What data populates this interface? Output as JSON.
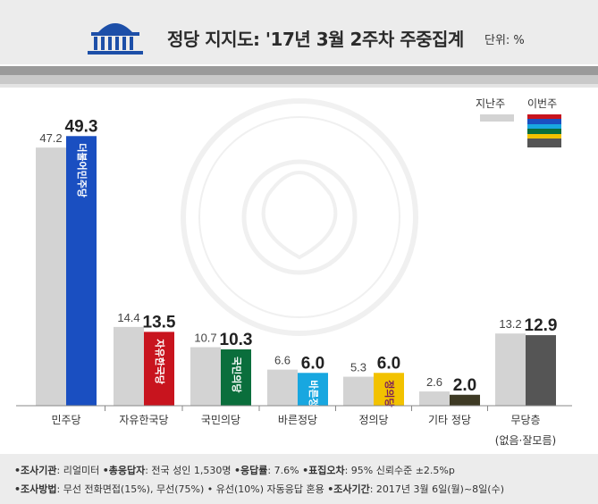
{
  "header": {
    "title": "정당 지지도: '17년 3월 2주차 주중집계",
    "unit": "단위: %",
    "emblem": "national-assembly-emblem"
  },
  "legend": {
    "prev_label": "지난주",
    "curr_label": "이번주"
  },
  "colors": {
    "prev": "#d3d3d3",
    "minjoo": "#1a4fc1",
    "jayu": "#c8141e",
    "gukmin": "#0a6e3c",
    "bareun": "#18a7e0",
    "jeongui": "#f2c200",
    "other": "#3e3a24",
    "none": "#555555"
  },
  "chart_data": {
    "type": "bar",
    "categories": [
      "민주당",
      "자유한국당",
      "국민의당",
      "바른정당",
      "정의당",
      "기타 정당",
      "무당층"
    ],
    "category_sublabels": [
      "",
      "",
      "",
      "",
      "",
      "",
      "(없음·잘모름)"
    ],
    "series": [
      {
        "name": "지난주",
        "values": [
          47.2,
          14.4,
          10.7,
          6.6,
          5.3,
          2.6,
          13.2
        ]
      },
      {
        "name": "이번주",
        "values": [
          49.3,
          13.5,
          10.3,
          6.0,
          6.0,
          2.0,
          12.9
        ]
      }
    ],
    "prev_labels": [
      "47.2",
      "14.4",
      "10.7",
      "6.6",
      "5.3",
      "2.6",
      "13.2"
    ],
    "curr_labels": [
      "49.3",
      "13.5",
      "10.3",
      "6.0",
      "6.0",
      "2.0",
      "12.9"
    ],
    "bar_logos": [
      "더불어민주당",
      "자유한국당",
      "국민의당",
      "바른정당",
      "정의당",
      "",
      ""
    ],
    "ylim": [
      0,
      50
    ],
    "grid": false,
    "legend_position": "top-right",
    "watermark_text": "THE NATIONAL ASSEMBLY OF THE REPUBLIC OF KOREA · 대한민국국회 · 국회"
  },
  "footer": {
    "line1": [
      {
        "k": "•조사기관",
        "v": ": 리얼미터 "
      },
      {
        "k": "•총응답자",
        "v": ": 전국 성인 1,530명 "
      },
      {
        "k": "•응답률",
        "v": ": 7.6% "
      },
      {
        "k": "•표집오차",
        "v": ": 95% 신뢰수준 ±2.5%p"
      }
    ],
    "line2": [
      {
        "k": "•조사방법",
        "v": ": 무선 전화면접(15%), 무선(75%) • 유선(10%) 자동응답 혼용 "
      },
      {
        "k": "•조사기간",
        "v": ": 2017년 3월 6일(월)~8일(수)"
      }
    ]
  }
}
